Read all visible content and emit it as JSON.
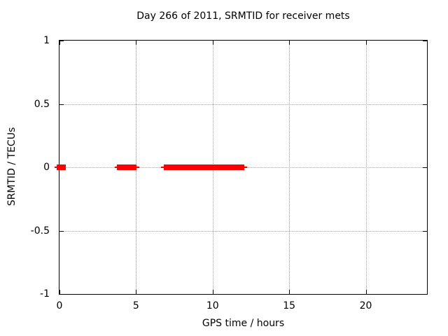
{
  "chart_data": {
    "type": "scatter",
    "title": "Day 266 of 2011, SRMTID for receiver mets",
    "xlabel": "GPS time / hours",
    "ylabel": "SRMTID / TECUs",
    "xlim": [
      0,
      24
    ],
    "ylim": [
      -1,
      1
    ],
    "xticks": [
      0,
      5,
      10,
      15,
      20
    ],
    "xtick_labels": [
      "0",
      "5",
      "10",
      "15",
      "20"
    ],
    "yticks": [
      1,
      0.5,
      0,
      -0.5,
      -1
    ],
    "ytick_labels": [
      "1",
      "0.5",
      "0",
      "-0.5",
      "-1"
    ],
    "grid": true,
    "grid_style": "dotted",
    "grid_color": "#a3a3a3",
    "border_color": "#000000",
    "background_color": "#ffffff",
    "marker": "filled-square",
    "legend": "none",
    "series": [
      {
        "name": "SRMTID",
        "color": "#ff0000",
        "y_value": 0,
        "segments": [
          {
            "bar": [
              -0.2,
              0.43
            ],
            "line": [
              -0.3,
              0.43
            ]
          },
          {
            "bar": [
              3.75,
              5.05
            ],
            "line": [
              3.6,
              5.23
            ]
          },
          {
            "bar": [
              6.83,
              12.08
            ],
            "line": [
              6.65,
              12.25
            ]
          }
        ]
      }
    ]
  }
}
